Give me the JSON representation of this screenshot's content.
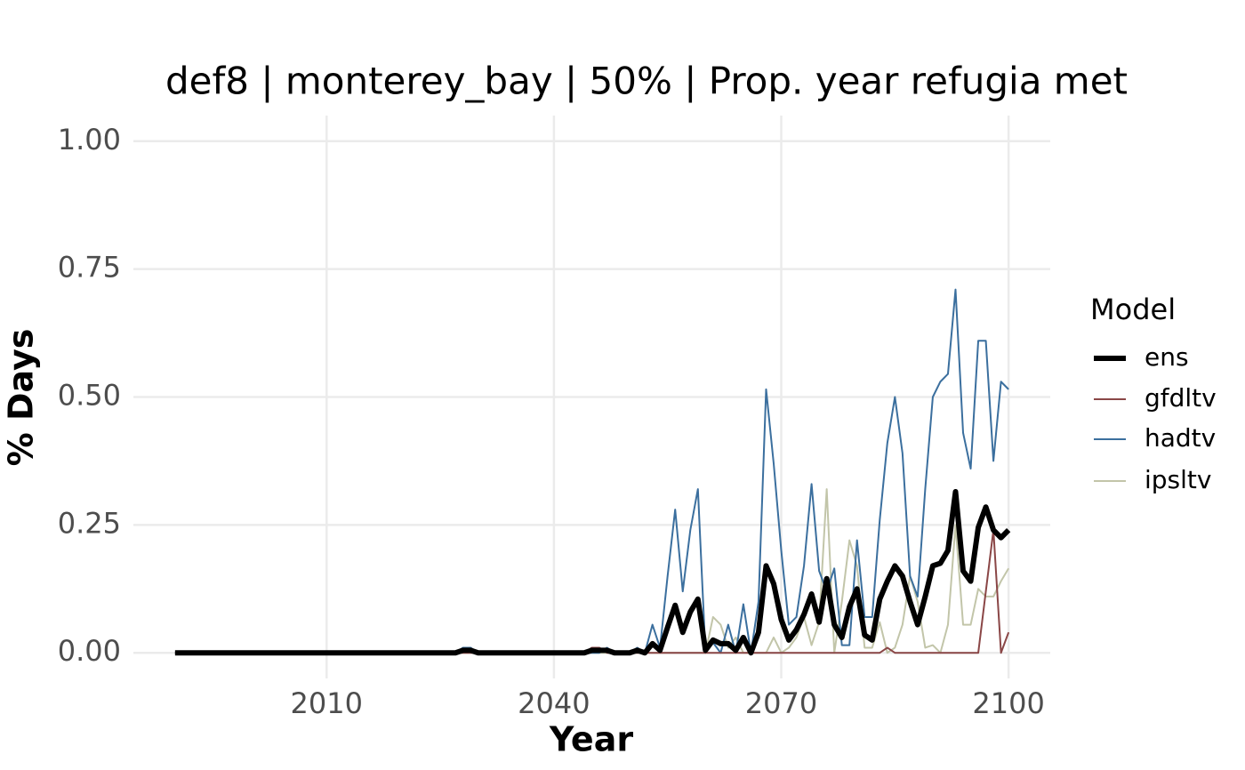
{
  "chart_data": {
    "type": "line",
    "title": "def8 | monterey_bay | 50% | Prop. year refugia met",
    "x_label": "Year",
    "y_label": "% Days",
    "legend_title": "Model",
    "legend": "right",
    "grid": true,
    "xlim": [
      1984.5,
      2105.5
    ],
    "xticks": [
      2010,
      2040,
      2070,
      2100
    ],
    "ylim": [
      -0.05,
      1.05
    ],
    "yticks": [
      {
        "value": 0,
        "label": "0.00"
      },
      {
        "value": 0.25,
        "label": "0.25"
      },
      {
        "value": 0.5,
        "label": "0.50"
      },
      {
        "value": 0.75,
        "label": "0.75"
      },
      {
        "value": 1,
        "label": "1.00"
      }
    ],
    "x": [
      1990,
      1991,
      1992,
      1993,
      1994,
      1995,
      1996,
      1997,
      1998,
      1999,
      2000,
      2001,
      2002,
      2003,
      2004,
      2005,
      2006,
      2007,
      2008,
      2009,
      2010,
      2011,
      2012,
      2013,
      2014,
      2015,
      2016,
      2017,
      2018,
      2019,
      2020,
      2021,
      2022,
      2023,
      2024,
      2025,
      2026,
      2027,
      2028,
      2029,
      2030,
      2031,
      2032,
      2033,
      2034,
      2035,
      2036,
      2037,
      2038,
      2039,
      2040,
      2041,
      2042,
      2043,
      2044,
      2045,
      2046,
      2047,
      2048,
      2049,
      2050,
      2051,
      2052,
      2053,
      2054,
      2055,
      2056,
      2057,
      2058,
      2059,
      2060,
      2061,
      2062,
      2063,
      2064,
      2065,
      2066,
      2067,
      2068,
      2069,
      2070,
      2071,
      2072,
      2073,
      2074,
      2075,
      2076,
      2077,
      2078,
      2079,
      2080,
      2081,
      2082,
      2083,
      2084,
      2085,
      2086,
      2087,
      2088,
      2089,
      2090,
      2091,
      2092,
      2093,
      2094,
      2095,
      2096,
      2097,
      2098,
      2099,
      2100
    ],
    "series": [
      {
        "name": "ens",
        "color": "#000000",
        "width": 6,
        "values": [
          0,
          0,
          0,
          0,
          0,
          0,
          0,
          0,
          0,
          0,
          0,
          0,
          0,
          0,
          0,
          0,
          0,
          0,
          0,
          0,
          0,
          0,
          0,
          0,
          0,
          0,
          0,
          0,
          0,
          0,
          0,
          0,
          0,
          0,
          0,
          0,
          0,
          0,
          0.005,
          0.005,
          0,
          0,
          0,
          0,
          0,
          0,
          0,
          0,
          0,
          0,
          0,
          0,
          0,
          0,
          0,
          0.005,
          0.005,
          0.005,
          0,
          0,
          0,
          0.005,
          0,
          0.018,
          0.005,
          0.05,
          0.093,
          0.04,
          0.08,
          0.105,
          0.005,
          0.025,
          0.018,
          0.018,
          0.005,
          0.03,
          0,
          0.04,
          0.17,
          0.135,
          0.065,
          0.025,
          0.045,
          0.075,
          0.115,
          0.06,
          0.145,
          0.055,
          0.03,
          0.09,
          0.125,
          0.035,
          0.025,
          0.105,
          0.14,
          0.17,
          0.15,
          0.1,
          0.055,
          0.11,
          0.17,
          0.175,
          0.2,
          0.315,
          0.16,
          0.14,
          0.245,
          0.285,
          0.24,
          0.225,
          0.24
        ]
      },
      {
        "name": "gfdltv",
        "color": "#8a4646",
        "width": 2,
        "values": [
          0,
          0,
          0,
          0,
          0,
          0,
          0,
          0,
          0,
          0,
          0,
          0,
          0,
          0,
          0,
          0,
          0,
          0,
          0,
          0,
          0,
          0,
          0,
          0,
          0,
          0,
          0,
          0,
          0,
          0,
          0,
          0,
          0,
          0,
          0,
          0,
          0,
          0,
          0,
          0,
          0,
          0,
          0,
          0,
          0,
          0,
          0,
          0,
          0,
          0,
          0,
          0,
          0,
          0,
          0,
          0.01,
          0.01,
          0,
          0,
          0,
          0,
          0,
          0,
          0,
          0,
          0,
          0,
          0,
          0,
          0,
          0,
          0,
          0,
          0,
          0,
          0,
          0,
          0,
          0,
          0,
          0,
          0,
          0,
          0,
          0,
          0,
          0,
          0,
          0,
          0,
          0,
          0,
          0,
          0,
          0.01,
          0,
          0,
          0,
          0,
          0,
          0,
          0,
          0,
          0,
          0,
          0,
          0,
          0.12,
          0.24,
          0,
          0.04
        ]
      },
      {
        "name": "hadtv",
        "color": "#3b6f9e",
        "width": 2,
        "values": [
          0,
          0,
          0,
          0,
          0,
          0,
          0,
          0,
          0,
          0,
          0,
          0,
          0,
          0,
          0,
          0,
          0,
          0,
          0,
          0,
          0,
          0,
          0,
          0,
          0,
          0,
          0,
          0,
          0,
          0,
          0,
          0,
          0,
          0,
          0,
          0,
          0,
          0,
          0.01,
          0.01,
          0,
          0,
          0,
          0,
          0,
          0,
          0,
          0,
          0,
          0,
          0,
          0,
          0,
          0,
          0,
          0,
          0,
          0.01,
          0,
          0,
          0,
          0.01,
          0,
          0.055,
          0.01,
          0.15,
          0.28,
          0.12,
          0.24,
          0.32,
          0,
          0.02,
          0,
          0.055,
          0,
          0.095,
          0,
          0.1,
          0.515,
          0.37,
          0.2,
          0.055,
          0.07,
          0.17,
          0.33,
          0.16,
          0.12,
          0.165,
          0.015,
          0.015,
          0.22,
          0.07,
          0.07,
          0.26,
          0.41,
          0.5,
          0.39,
          0.15,
          0.11,
          0.32,
          0.5,
          0.53,
          0.545,
          0.71,
          0.43,
          0.36,
          0.61,
          0.61,
          0.375,
          0.53,
          0.515
        ]
      },
      {
        "name": "ipsltv",
        "color": "#c2c5a9",
        "width": 2,
        "values": [
          0,
          0,
          0,
          0,
          0,
          0,
          0,
          0,
          0,
          0,
          0,
          0,
          0,
          0,
          0,
          0,
          0,
          0,
          0,
          0,
          0,
          0,
          0,
          0,
          0,
          0,
          0,
          0,
          0,
          0,
          0,
          0,
          0,
          0,
          0,
          0,
          0,
          0,
          0,
          0,
          0,
          0,
          0,
          0,
          0,
          0,
          0,
          0,
          0,
          0,
          0,
          0,
          0,
          0,
          0,
          0,
          0,
          0,
          0,
          0,
          0,
          0,
          0,
          0,
          0,
          0,
          0,
          0,
          0,
          0,
          0,
          0.07,
          0.055,
          0.01,
          0.03,
          0,
          0,
          0,
          0,
          0.03,
          0,
          0.01,
          0.03,
          0.07,
          0.015,
          0.06,
          0.32,
          0,
          0.1,
          0.22,
          0.17,
          0.01,
          0.01,
          0.06,
          0,
          0.01,
          0.055,
          0.15,
          0.1,
          0.01,
          0.015,
          0,
          0.055,
          0.25,
          0.055,
          0.055,
          0.125,
          0.11,
          0.11,
          0.14,
          0.165
        ]
      }
    ]
  }
}
